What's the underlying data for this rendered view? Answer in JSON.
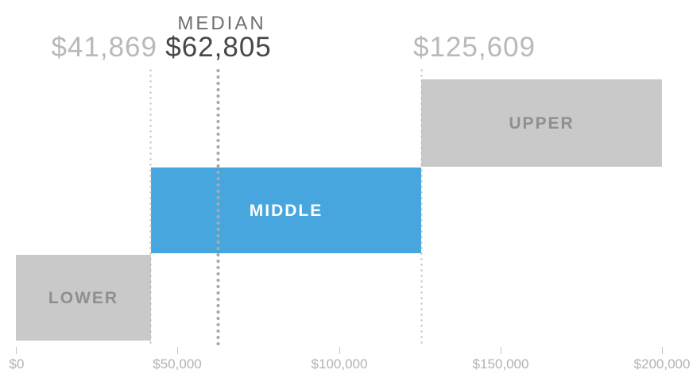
{
  "chart_data": {
    "type": "bar",
    "title": "",
    "subtitle": "",
    "xlabel": "",
    "ylabel": "",
    "grid": false,
    "legend": "none",
    "x_axis": {
      "min": 0,
      "max": 200000,
      "ticks": [
        {
          "value": 0,
          "label": "$0"
        },
        {
          "value": 50000,
          "label": "$50,000"
        },
        {
          "value": 100000,
          "label": "$100,000"
        },
        {
          "value": 150000,
          "label": "$150,000"
        },
        {
          "value": 200000,
          "label": "$200,000"
        }
      ]
    },
    "series": [
      {
        "name": "LOWER",
        "range_usd": [
          0,
          41869
        ],
        "color": "#c9c9c9",
        "label_color": "#8f8f8f",
        "row": "bottom"
      },
      {
        "name": "MIDDLE",
        "range_usd": [
          41869,
          125609
        ],
        "color": "#47a6dd",
        "label_color": "#ffffff",
        "row": "middle"
      },
      {
        "name": "UPPER",
        "range_usd": [
          125609,
          200000
        ],
        "color": "#c9c9c9",
        "label_color": "#8f8f8f",
        "row": "top"
      }
    ],
    "markers": [
      {
        "value": 41869,
        "label": "$41,869",
        "caption": "",
        "style": "light",
        "line": "thin-dotted"
      },
      {
        "value": 62805,
        "label": "$62,805",
        "caption": "MEDIAN",
        "style": "dark",
        "line": "thick-dotted"
      },
      {
        "value": 125609,
        "label": "$125,609",
        "caption": "",
        "style": "light",
        "line": "thin-dotted"
      }
    ]
  },
  "colors": {
    "bar_gray": "#c9c9c9",
    "bar_blue": "#47a6dd",
    "threshold_label_light": "#b9b9b9",
    "median_value_label": "#474747",
    "median_caption": "#6f6f6f",
    "gray_bar_text": "#8f8f8f",
    "middle_bar_text": "#ffffff",
    "axis_text": "#b3b3b3",
    "dotted_line": "#bcbcbc"
  }
}
